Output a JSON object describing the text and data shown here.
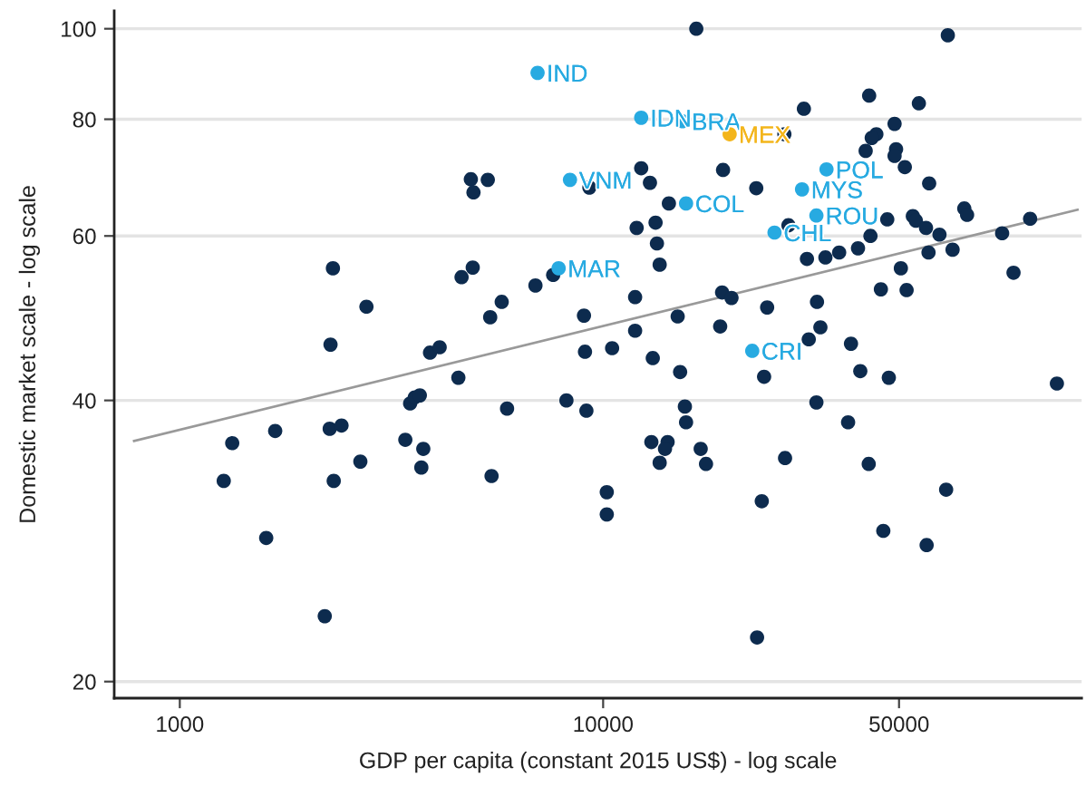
{
  "chart_data": {
    "type": "scatter",
    "xlabel": "GDP per capita (constant 2015 US$) - log scale",
    "ylabel": "Domestic market scale - log scale",
    "log": "xy",
    "grid": "y",
    "marker": "circle",
    "xlim": [
      700,
      135000
    ],
    "ylim": [
      19.2,
      104.5
    ],
    "xticks": [
      1000,
      10000,
      50000
    ],
    "yticks": [
      20,
      40,
      60,
      80,
      100
    ],
    "series": [
      {
        "type": "line",
        "color": "#999999",
        "marker": "none",
        "line_style": "solid",
        "x": [
          780,
          132000
        ],
        "values": [
          36.2,
          64.0
        ]
      },
      {
        "color": "#0d2b4e",
        "x": [
          4870,
          5340,
          4940,
          9280,
          2300,
          2760,
          2270,
          3900,
          4110,
          4630,
          4920,
          7620,
          6920,
          5760,
          5410,
          9010,
          9060,
          16600,
          65200,
          26800,
          29800,
          42500,
          55700,
          48800,
          44200,
          43100,
          41700,
          49200,
          48800,
          51600,
          58900,
          71300,
          72400,
          102000,
          87600,
          93200,
          12300,
          12900,
          19200,
          23000,
          14300,
          13300,
          12000,
          13400,
          13600,
          27400,
          46900,
          53900,
          54800,
          57900,
          62300,
          42800,
          40000,
          36100,
          33500,
          30300,
          58700,
          66900,
          50500,
          11900,
          19100,
          20100,
          32000,
          24400,
          45300,
          52100,
          15000,
          11900,
          18900,
          32600,
          30600,
          38500,
          10500,
          13100,
          4550,
          3500,
          3590,
          3690,
          5930,
          8190,
          9130,
          1330,
          1680,
          2260,
          2410,
          3410,
          3760,
          2670,
          3720,
          1270,
          2310,
          5450,
          1600,
          2200,
          15200,
          24000,
          40500,
          47300,
          118000,
          15600,
          15700,
          31900,
          37900,
          13000,
          14200,
          14000,
          13600,
          17000,
          17500,
          26900,
          42400,
          10200,
          10200,
          23700,
          64600,
          45900,
          58100,
          23100
        ],
        "values": [
          69.0,
          68.9,
          66.8,
          67.6,
          55.4,
          50.4,
          45.9,
          45.0,
          45.6,
          54.2,
          55.5,
          54.5,
          53.1,
          51.0,
          49.1,
          49.3,
          45.1,
          100,
          98.4,
          77.1,
          82.1,
          84.8,
          83.2,
          79.1,
          77.1,
          76.4,
          74.0,
          74.3,
          73.1,
          71.1,
          68.3,
          64.2,
          63.2,
          62.6,
          60.4,
          54.8,
          70.9,
          68.4,
          70.6,
          67.5,
          65.0,
          62.0,
          61.2,
          58.9,
          55.9,
          61.6,
          62.5,
          63.0,
          62.3,
          61.2,
          60.2,
          60.0,
          58.2,
          57.6,
          56.9,
          56.7,
          57.6,
          58.0,
          55.4,
          51.6,
          52.2,
          51.5,
          51.0,
          50.3,
          52.6,
          52.5,
          49.2,
          47.5,
          48.0,
          47.9,
          46.5,
          46.0,
          45.5,
          44.4,
          42.3,
          39.7,
          40.3,
          40.5,
          39.2,
          40.0,
          39.0,
          36.0,
          37.1,
          37.3,
          37.6,
          36.3,
          35.5,
          34.4,
          33.9,
          32.8,
          32.8,
          33.2,
          28.5,
          23.5,
          42.9,
          42.4,
          43.0,
          42.3,
          41.7,
          39.4,
          37.9,
          39.8,
          37.9,
          36.1,
          36.1,
          35.5,
          34.3,
          35.5,
          34.2,
          34.7,
          34.2,
          31.9,
          30.2,
          31.2,
          32.1,
          29.0,
          28.0,
          22.3
        ]
      },
      {
        "color": "#27aae1",
        "x": [
          7000,
          12300,
          15400,
          8350,
          15700,
          33700,
          29500,
          31900,
          25400,
          7850,
          22500
        ],
        "values": [
          89.7,
          80.3,
          79.6,
          68.9,
          65.0,
          70.7,
          67.3,
          63.1,
          60.5,
          55.4,
          45.2
        ],
        "value_labels": [
          "IND",
          "IDN",
          "BRA",
          "VNM",
          "COL",
          "POL",
          "MYS",
          "ROU",
          "CHL",
          "MAR",
          "CRI"
        ]
      },
      {
        "color": "#f3b51b",
        "x": [
          19900
        ],
        "values": [
          77.1
        ],
        "value_labels": [
          "MEX"
        ]
      }
    ]
  }
}
